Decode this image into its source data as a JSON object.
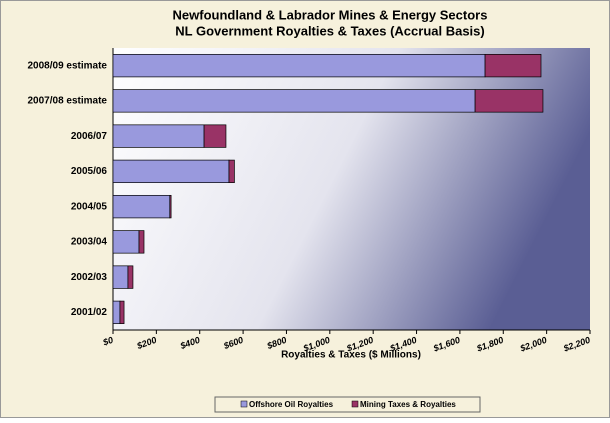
{
  "chart_data": {
    "type": "hbar_stacked",
    "title": "Newfoundland & Labrador Mines & Energy Sectors",
    "subtitle": "NL Government Royalties & Taxes (Accrual Basis)",
    "x_label": "Royalties & Taxes ($ Millions)",
    "categories": [
      "2008/09 estimate",
      "2007/08 estimate",
      "2006/07",
      "2005/06",
      "2004/05",
      "2003/04",
      "2002/03",
      "2001/02"
    ],
    "series": [
      {
        "name": "Offshore Oil Royalties",
        "color": "#9999dd",
        "values": [
          1716,
          1670,
          420,
          535,
          262,
          120,
          69,
          32
        ]
      },
      {
        "name": "Mining Taxes & Royalties",
        "color": "#993366",
        "values": [
          258,
          313,
          101,
          25,
          6,
          23,
          23,
          19
        ]
      }
    ],
    "xlim": [
      0,
      2200
    ],
    "xticks": [
      {
        "value": 0,
        "label": "$0"
      },
      {
        "value": 200,
        "label": "$200"
      },
      {
        "value": 400,
        "label": "$400"
      },
      {
        "value": 600,
        "label": "$600"
      },
      {
        "value": 800,
        "label": "$800"
      },
      {
        "value": 1000,
        "label": "$1,000"
      },
      {
        "value": 1200,
        "label": "$1,200"
      },
      {
        "value": 1400,
        "label": "$1,400"
      },
      {
        "value": 1600,
        "label": "$1,600"
      },
      {
        "value": 1800,
        "label": "$1,800"
      },
      {
        "value": 2000,
        "label": "$2,000"
      },
      {
        "value": 2200,
        "label": "$2,200"
      }
    ],
    "legend": "bottom"
  }
}
